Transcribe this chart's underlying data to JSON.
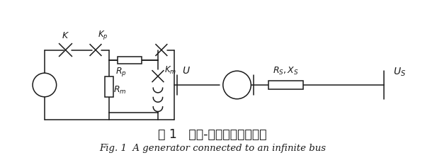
{
  "title_cn": "图 1   单机-无穷大系统示意图",
  "title_en": "Fig. 1  A generator connected to an infinite bus",
  "bg_color": "#ffffff",
  "line_color": "#1a1a1a",
  "fig_width": 6.0,
  "fig_height": 2.33,
  "dpi": 100
}
